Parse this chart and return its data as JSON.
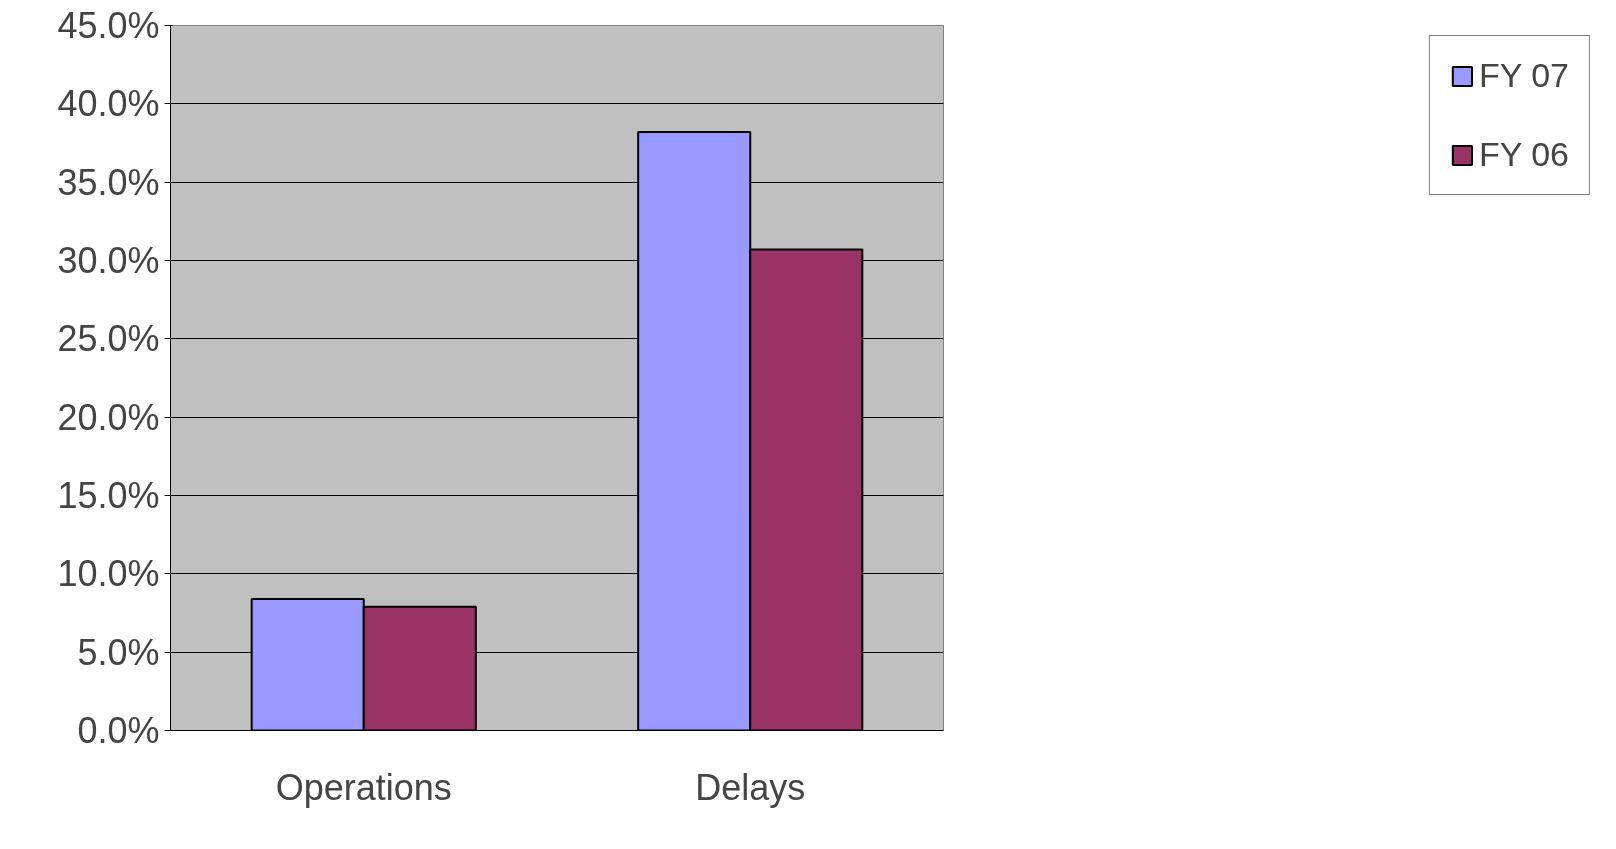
{
  "chart_data": {
    "type": "bar",
    "categories": [
      "Operations",
      "Delays"
    ],
    "series": [
      {
        "name": "FY 07",
        "color": "#9999ff",
        "values": [
          8.4,
          38.2
        ]
      },
      {
        "name": "FY 06",
        "color": "#993366",
        "values": [
          7.9,
          30.7
        ]
      }
    ],
    "ylim": [
      0,
      45
    ],
    "yticks": [
      {
        "value": 0,
        "label": "0.0%"
      },
      {
        "value": 5,
        "label": "5.0%"
      },
      {
        "value": 10,
        "label": "10.0%"
      },
      {
        "value": 15,
        "label": "15.0%"
      },
      {
        "value": 20,
        "label": "20.0%"
      },
      {
        "value": 25,
        "label": "25.0%"
      },
      {
        "value": 30,
        "label": "30.0%"
      },
      {
        "value": 35,
        "label": "35.0%"
      },
      {
        "value": 40,
        "label": "40.0%"
      },
      {
        "value": 45,
        "label": "45.0%"
      }
    ],
    "grid": "y",
    "legend": "right"
  }
}
